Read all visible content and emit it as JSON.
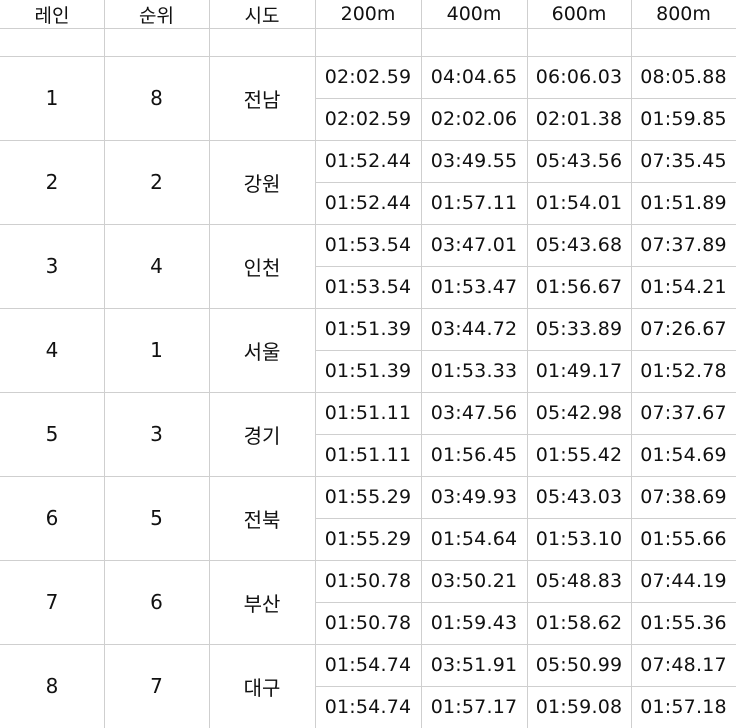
{
  "table": {
    "headers": [
      "레인",
      "순위",
      "시도",
      "200m",
      "400m",
      "600m",
      "800m"
    ],
    "rows": [
      {
        "lane": "1",
        "rank": "8",
        "region": "전남",
        "cumulative": [
          "02:02.59",
          "04:04.65",
          "06:06.03",
          "08:05.88"
        ],
        "splits": [
          "02:02.59",
          "02:02.06",
          "02:01.38",
          "01:59.85"
        ]
      },
      {
        "lane": "2",
        "rank": "2",
        "region": "강원",
        "cumulative": [
          "01:52.44",
          "03:49.55",
          "05:43.56",
          "07:35.45"
        ],
        "splits": [
          "01:52.44",
          "01:57.11",
          "01:54.01",
          "01:51.89"
        ]
      },
      {
        "lane": "3",
        "rank": "4",
        "region": "인천",
        "cumulative": [
          "01:53.54",
          "03:47.01",
          "05:43.68",
          "07:37.89"
        ],
        "splits": [
          "01:53.54",
          "01:53.47",
          "01:56.67",
          "01:54.21"
        ]
      },
      {
        "lane": "4",
        "rank": "1",
        "region": "서울",
        "cumulative": [
          "01:51.39",
          "03:44.72",
          "05:33.89",
          "07:26.67"
        ],
        "splits": [
          "01:51.39",
          "01:53.33",
          "01:49.17",
          "01:52.78"
        ]
      },
      {
        "lane": "5",
        "rank": "3",
        "region": "경기",
        "cumulative": [
          "01:51.11",
          "03:47.56",
          "05:42.98",
          "07:37.67"
        ],
        "splits": [
          "01:51.11",
          "01:56.45",
          "01:55.42",
          "01:54.69"
        ]
      },
      {
        "lane": "6",
        "rank": "5",
        "region": "전북",
        "cumulative": [
          "01:55.29",
          "03:49.93",
          "05:43.03",
          "07:38.69"
        ],
        "splits": [
          "01:55.29",
          "01:54.64",
          "01:53.10",
          "01:55.66"
        ]
      },
      {
        "lane": "7",
        "rank": "6",
        "region": "부산",
        "cumulative": [
          "01:50.78",
          "03:50.21",
          "05:48.83",
          "07:44.19"
        ],
        "splits": [
          "01:50.78",
          "01:59.43",
          "01:58.62",
          "01:55.36"
        ]
      },
      {
        "lane": "8",
        "rank": "7",
        "region": "대구",
        "cumulative": [
          "01:54.74",
          "03:51.91",
          "05:50.99",
          "07:48.17"
        ],
        "splits": [
          "01:54.74",
          "01:57.17",
          "01:59.08",
          "01:57.18"
        ]
      }
    ]
  }
}
